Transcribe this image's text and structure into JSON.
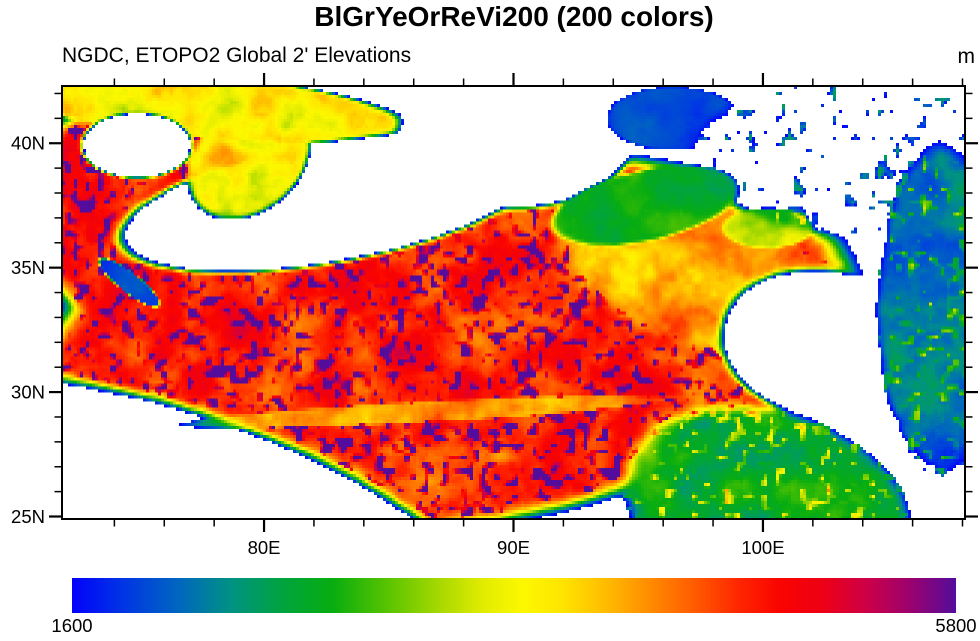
{
  "page": {
    "background": "#ffffff",
    "text_color": "#000000"
  },
  "header": {
    "title": "BlGrYeOrReVi200 (200 colors)",
    "subtitle": "NGDC, ETOPO2 Global 2' Elevations",
    "units_label": "m"
  },
  "chart_data": {
    "type": "heatmap",
    "title": "BlGrYeOrReVi200 (200 colors)",
    "subtitle": "NGDC, ETOPO2 Global 2' Elevations",
    "units": "m",
    "colormap_name": "BlGrYeOrReVi200",
    "n_colors": 200,
    "x_axis": {
      "range_lon_east": [
        71.9,
        108.1
      ],
      "major_ticks": [
        80,
        90,
        100
      ],
      "major_labels": [
        "80E",
        "90E",
        "100E"
      ],
      "minor_step_deg": 2,
      "minor_range": [
        74,
        108
      ]
    },
    "y_axis": {
      "range_lat_north": [
        24.9,
        42.3
      ],
      "major_ticks": [
        25,
        30,
        35,
        40
      ],
      "major_labels": [
        "25N",
        "30N",
        "35N",
        "40N"
      ],
      "minor_step_deg": 1,
      "minor_range": [
        26,
        42
      ]
    },
    "colorbar": {
      "min": 1600,
      "max": 5800,
      "min_label": "1600",
      "max_label": "5800",
      "stops": [
        [
          0.0,
          "#0202fa"
        ],
        [
          0.06,
          "#0036e4"
        ],
        [
          0.12,
          "#0066bf"
        ],
        [
          0.18,
          "#009283"
        ],
        [
          0.24,
          "#00a43c"
        ],
        [
          0.295,
          "#08ad10"
        ],
        [
          0.355,
          "#56c300"
        ],
        [
          0.415,
          "#a6d800"
        ],
        [
          0.465,
          "#e2ec00"
        ],
        [
          0.51,
          "#fcf800"
        ],
        [
          0.555,
          "#ffe400"
        ],
        [
          0.61,
          "#ffb600"
        ],
        [
          0.655,
          "#ff8a00"
        ],
        [
          0.7,
          "#ff5f00"
        ],
        [
          0.755,
          "#ff2500"
        ],
        [
          0.8,
          "#fa0400"
        ],
        [
          0.85,
          "#ed0016"
        ],
        [
          0.9,
          "#cc0048"
        ],
        [
          0.95,
          "#99026f"
        ],
        [
          1.0,
          "#530c9c"
        ]
      ]
    },
    "missing_value_color": "#ffffff",
    "missing_value_threshold_m": 1600,
    "regions": [
      {
        "name": "tibetan-plateau-core",
        "lon": 87.2,
        "lat": 31.9,
        "rx_deg": 16.6,
        "ry_deg": 7.3,
        "rot_deg": -8,
        "elev_m": 4800,
        "sharp": 6
      },
      {
        "name": "plateau-east-flank",
        "lon": 97.3,
        "lat": 35.0,
        "rx_deg": 5.8,
        "ry_deg": 3.1,
        "rot_deg": 20,
        "elev_m": 4300,
        "sharp": 4
      },
      {
        "name": "karakoram-west-ranges",
        "lon": 75.6,
        "lat": 36.6,
        "rx_deg": 5.8,
        "ry_deg": 4.4,
        "rot_deg": 30,
        "elev_m": 4900,
        "sharp": 4
      },
      {
        "name": "tian-shan",
        "lon": 77.0,
        "lat": 41.6,
        "rx_deg": 8.7,
        "ry_deg": 1.3,
        "rot_deg": 6,
        "elev_m": 3900,
        "sharp": 5
      },
      {
        "name": "tarim-basin",
        "lon": 82.6,
        "lat": 37.6,
        "rx_deg": 8.5,
        "ry_deg": 2.4,
        "rot_deg": -10,
        "elev_m": 950,
        "sharp": 7
      },
      {
        "name": "tarim-west-lobe",
        "lon": 74.9,
        "lat": 39.9,
        "rx_deg": 2.2,
        "ry_deg": 1.3,
        "rot_deg": 0,
        "elev_m": 950,
        "sharp": 6
      },
      {
        "name": "tarim-east-bay",
        "lon": 90.1,
        "lat": 40.2,
        "rx_deg": 4.7,
        "ry_deg": 2.8,
        "rot_deg": 0,
        "elev_m": 950,
        "sharp": 6
      },
      {
        "name": "tianshan-south-spur",
        "lon": 79.4,
        "lat": 39.3,
        "rx_deg": 2.7,
        "ry_deg": 2.0,
        "rot_deg": -40,
        "elev_m": 4000,
        "sharp": 5,
        "strength": 0.9
      },
      {
        "name": "hexi-corridor-lowland",
        "lon": 96.4,
        "lat": 41.0,
        "rx_deg": 2.7,
        "ry_deg": 1.3,
        "rot_deg": 0,
        "elev_m": 1950,
        "sharp": 6
      },
      {
        "name": "northeast-gobi-lowlands",
        "lon": 103.6,
        "lat": 39.5,
        "rx_deg": 6.2,
        "ry_deg": 3.1,
        "rot_deg": 0,
        "elev_m": 1150,
        "sharp": 5,
        "speckle": true
      },
      {
        "name": "qaidam-basin",
        "lon": 95.3,
        "lat": 37.5,
        "rx_deg": 3.8,
        "ry_deg": 1.4,
        "rot_deg": -12,
        "elev_m": 2850,
        "sharp": 6
      },
      {
        "name": "xining-valley",
        "lon": 100.2,
        "lat": 36.6,
        "rx_deg": 1.8,
        "ry_deg": 0.8,
        "rot_deg": 0,
        "elev_m": 3300,
        "sharp": 5,
        "strength": 0.8
      },
      {
        "name": "sichuan-basin",
        "lon": 102.5,
        "lat": 31.9,
        "rx_deg": 4.2,
        "ry_deg": 3.0,
        "rot_deg": 10,
        "elev_m": 1050,
        "sharp": 6
      },
      {
        "name": "east-margin-valleys",
        "lon": 107.3,
        "lat": 33.3,
        "rx_deg": 2.7,
        "ry_deg": 6.6,
        "rot_deg": 0,
        "elev_m": 2200,
        "sharp": 4,
        "speckle": true
      },
      {
        "name": "hengduan-mountains-south",
        "lon": 100.2,
        "lat": 25.4,
        "rx_deg": 5.8,
        "ry_deg": 3.8,
        "rot_deg": 15,
        "elev_m": 2700,
        "sharp": 4,
        "speckle": true
      },
      {
        "name": "india-gangetic-plains",
        "lon": 76.5,
        "lat": 24.0,
        "rx_deg": 14.0,
        "ry_deg": 5.2,
        "rot_deg": 19,
        "elev_m": 800,
        "sharp": 6
      },
      {
        "name": "kashmir-valley",
        "lon": 74.6,
        "lat": 34.4,
        "rx_deg": 1.5,
        "ry_deg": 0.4,
        "rot_deg": 38,
        "elev_m": 1900,
        "sharp": 8
      },
      {
        "name": "yarlung-tsangpo-valley",
        "lon": 86.4,
        "lat": 29.2,
        "rx_deg": 9.8,
        "ry_deg": 0.4,
        "rot_deg": -3,
        "elev_m": 3800,
        "sharp": 3,
        "strength": 0.55
      }
    ],
    "noise": {
      "fbm_octaves": 4,
      "fbm_scale": 0.09,
      "amp_low_m": 240,
      "amp_high_m": 720,
      "speckle_high_threshold": 0.62,
      "speckle_low_threshold": 0.3
    }
  }
}
